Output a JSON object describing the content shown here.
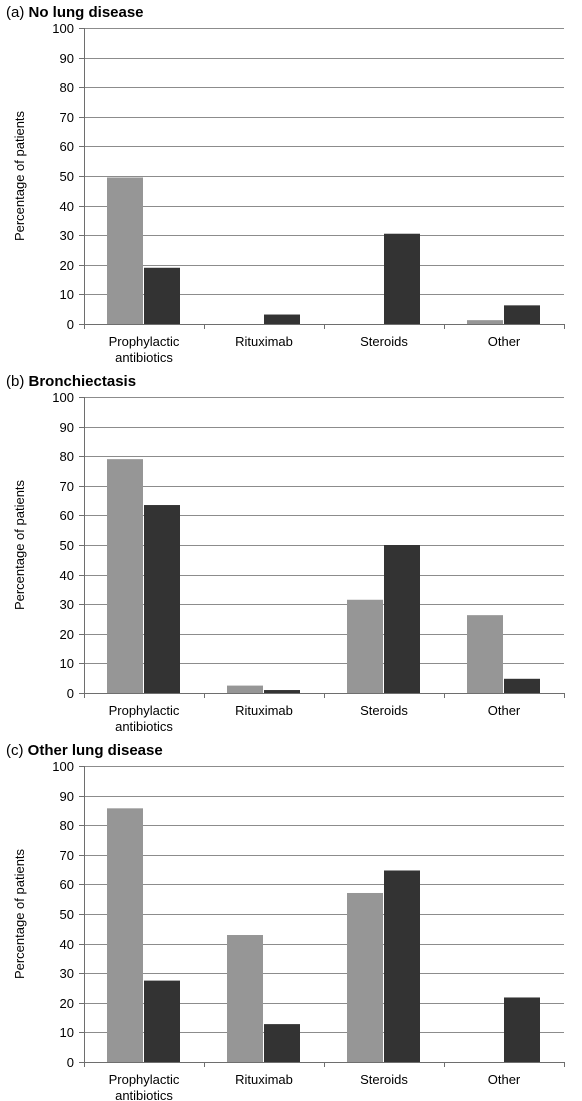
{
  "colors": {
    "series_1": "#969696",
    "series_2": "#333333",
    "grid": "#8c8c8c"
  },
  "chart_data": [
    {
      "type": "bar",
      "panel_label": "(a)",
      "title": "No lung disease",
      "ylabel": "Percentage of patients",
      "xlabel": "",
      "ylim": [
        0,
        100
      ],
      "yticks": [
        0,
        10,
        20,
        30,
        40,
        50,
        60,
        70,
        80,
        90,
        100
      ],
      "grid": true,
      "categories": [
        [
          "Prophylactic",
          "antibiotics"
        ],
        [
          "Rituximab"
        ],
        [
          "Steroids"
        ],
        [
          "Other"
        ]
      ],
      "series": [
        {
          "color": "#969696",
          "values": [
            49.5,
            0,
            0,
            1.3
          ]
        },
        {
          "color": "#333333",
          "values": [
            19,
            3.2,
            30.5,
            6.3
          ]
        }
      ]
    },
    {
      "type": "bar",
      "panel_label": "(b)",
      "title": "Bronchiectasis",
      "ylabel": "Percentage of patients",
      "xlabel": "",
      "ylim": [
        0,
        100
      ],
      "yticks": [
        0,
        10,
        20,
        30,
        40,
        50,
        60,
        70,
        80,
        90,
        100
      ],
      "grid": true,
      "categories": [
        [
          "Prophylactic",
          "antibiotics"
        ],
        [
          "Rituximab"
        ],
        [
          "Steroids"
        ],
        [
          "Other"
        ]
      ],
      "series": [
        {
          "color": "#969696",
          "values": [
            79,
            2.5,
            31.5,
            26.3
          ]
        },
        {
          "color": "#333333",
          "values": [
            63.5,
            1,
            50,
            4.8
          ]
        }
      ]
    },
    {
      "type": "bar",
      "panel_label": "(c)",
      "title": "Other lung disease",
      "ylabel": "Percentage of patients",
      "xlabel": "",
      "ylim": [
        0,
        100
      ],
      "yticks": [
        0,
        10,
        20,
        30,
        40,
        50,
        60,
        70,
        80,
        90,
        100
      ],
      "grid": true,
      "categories": [
        [
          "Prophylactic",
          "antibiotics"
        ],
        [
          "Rituximab"
        ],
        [
          "Steroids"
        ],
        [
          "Other"
        ]
      ],
      "series": [
        {
          "color": "#969696",
          "values": [
            85.7,
            42.9,
            57.1,
            0
          ]
        },
        {
          "color": "#333333",
          "values": [
            27.5,
            12.8,
            64.7,
            21.8
          ]
        }
      ]
    }
  ]
}
